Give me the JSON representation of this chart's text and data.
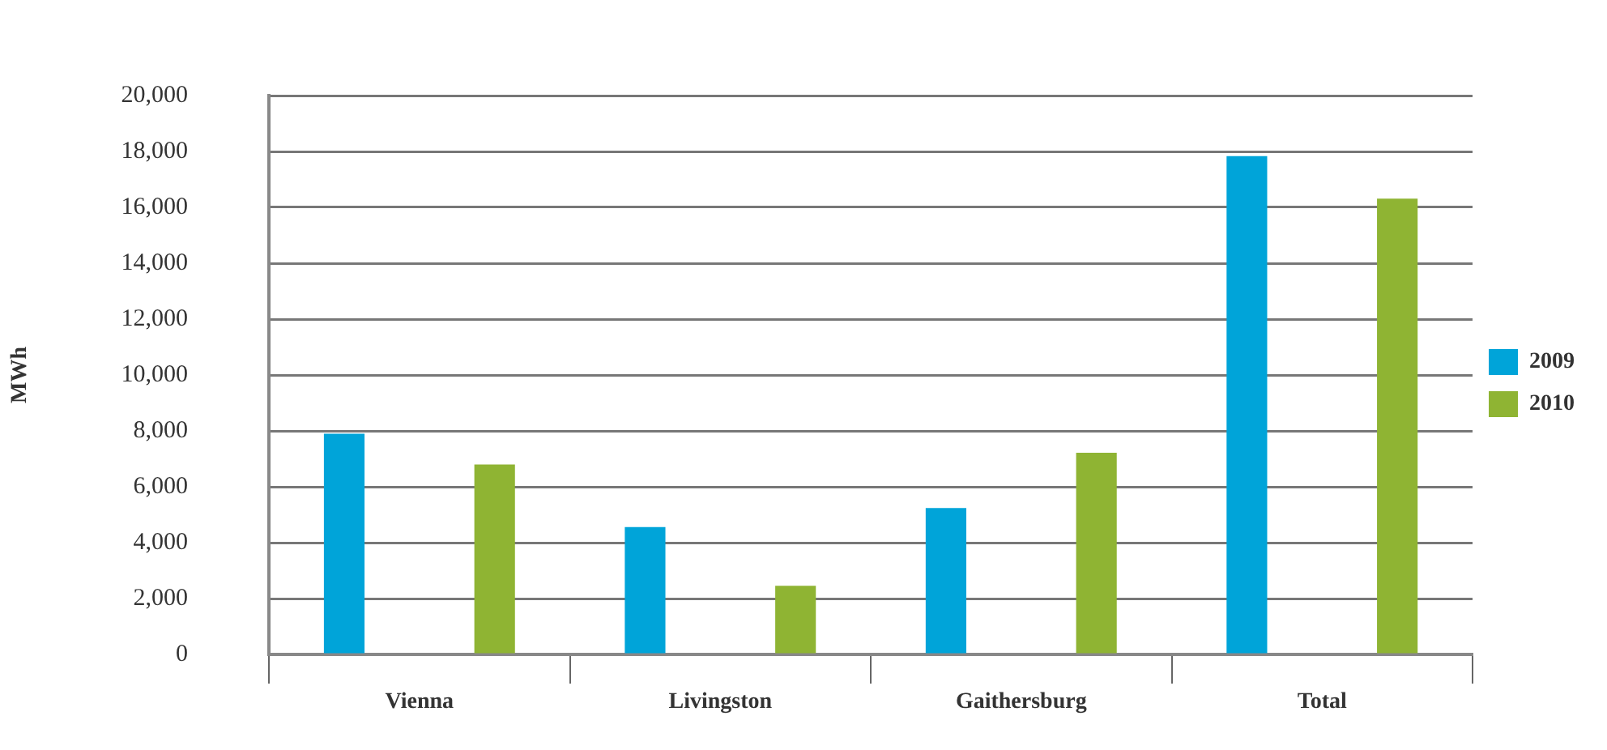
{
  "chart_data": {
    "type": "bar",
    "ylabel": "MWh",
    "categories": [
      "Vienna",
      "Livingston",
      "Gaithersburg",
      "Total"
    ],
    "series": [
      {
        "name": "2009",
        "color": "#00a4d9",
        "values": [
          7900,
          4560,
          5240,
          17830
        ]
      },
      {
        "name": "2010",
        "color": "#8fb433",
        "values": [
          6800,
          2460,
          7220,
          16310
        ]
      }
    ],
    "ylim": [
      0,
      20000
    ],
    "yticks": [
      {
        "value": 0,
        "label": "0"
      },
      {
        "value": 2000,
        "label": "2,000"
      },
      {
        "value": 4000,
        "label": "4,000"
      },
      {
        "value": 6000,
        "label": "6,000"
      },
      {
        "value": 8000,
        "label": "8,000"
      },
      {
        "value": 10000,
        "label": "10,000"
      },
      {
        "value": 12000,
        "label": "12,000"
      },
      {
        "value": 14000,
        "label": "14,000"
      },
      {
        "value": 16000,
        "label": "16,000"
      },
      {
        "value": 18000,
        "label": "18,000"
      },
      {
        "value": 20000,
        "label": "20,000"
      }
    ],
    "grid": "y",
    "legend": "right"
  }
}
